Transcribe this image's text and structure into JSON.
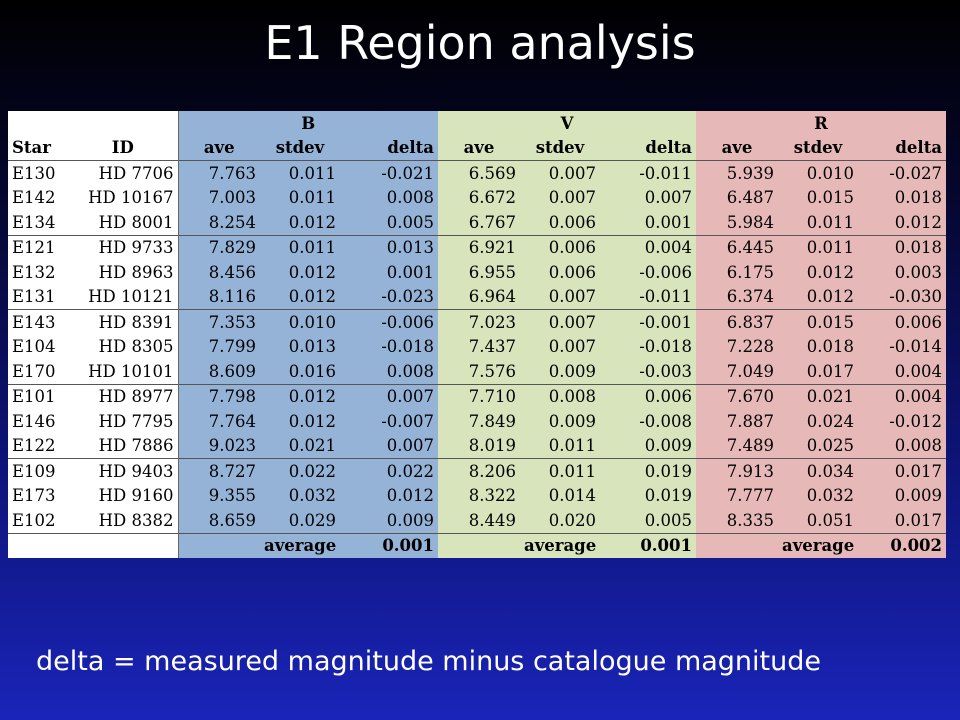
{
  "title": "E1 Region analysis",
  "group_headers": [
    "B",
    "V",
    "R"
  ],
  "col_headers": [
    "Star",
    "ID",
    "ave",
    "stdev",
    "delta",
    "ave",
    "stdev",
    "delta",
    "ave",
    "stdev",
    "delta"
  ],
  "rows": [
    {
      "star": "E130",
      "id": "HD 7706",
      "b": [
        "7.763",
        "0.011",
        "-0.021"
      ],
      "v": [
        "6.569",
        "0.007",
        "-0.011"
      ],
      "r": [
        "5.939",
        "0.010",
        "-0.027"
      ]
    },
    {
      "star": "E142",
      "id": "HD 10167",
      "b": [
        "7.003",
        "0.011",
        "0.008"
      ],
      "v": [
        "6.672",
        "0.007",
        "0.007"
      ],
      "r": [
        "6.487",
        "0.015",
        "0.018"
      ]
    },
    {
      "star": "E134",
      "id": "HD 8001",
      "b": [
        "8.254",
        "0.012",
        "0.005"
      ],
      "v": [
        "6.767",
        "0.006",
        "0.001"
      ],
      "r": [
        "5.984",
        "0.011",
        "0.012"
      ]
    },
    {
      "star": "E121",
      "id": "HD 9733",
      "b": [
        "7.829",
        "0.011",
        "0.013"
      ],
      "v": [
        "6.921",
        "0.006",
        "0.004"
      ],
      "r": [
        "6.445",
        "0.011",
        "0.018"
      ]
    },
    {
      "star": "E132",
      "id": "HD 8963",
      "b": [
        "8.456",
        "0.012",
        "0.001"
      ],
      "v": [
        "6.955",
        "0.006",
        "-0.006"
      ],
      "r": [
        "6.175",
        "0.012",
        "0.003"
      ]
    },
    {
      "star": "E131",
      "id": "HD 10121",
      "b": [
        "8.116",
        "0.012",
        "-0.023"
      ],
      "v": [
        "6.964",
        "0.007",
        "-0.011"
      ],
      "r": [
        "6.374",
        "0.012",
        "-0.030"
      ]
    },
    {
      "star": "E143",
      "id": "HD 8391",
      "b": [
        "7.353",
        "0.010",
        "-0.006"
      ],
      "v": [
        "7.023",
        "0.007",
        "-0.001"
      ],
      "r": [
        "6.837",
        "0.015",
        "0.006"
      ]
    },
    {
      "star": "E104",
      "id": "HD 8305",
      "b": [
        "7.799",
        "0.013",
        "-0.018"
      ],
      "v": [
        "7.437",
        "0.007",
        "-0.018"
      ],
      "r": [
        "7.228",
        "0.018",
        "-0.014"
      ]
    },
    {
      "star": "E170",
      "id": "HD 10101",
      "b": [
        "8.609",
        "0.016",
        "0.008"
      ],
      "v": [
        "7.576",
        "0.009",
        "-0.003"
      ],
      "r": [
        "7.049",
        "0.017",
        "0.004"
      ]
    },
    {
      "star": "E101",
      "id": "HD 8977",
      "b": [
        "7.798",
        "0.012",
        "0.007"
      ],
      "v": [
        "7.710",
        "0.008",
        "0.006"
      ],
      "r": [
        "7.670",
        "0.021",
        "0.004"
      ]
    },
    {
      "star": "E146",
      "id": "HD 7795",
      "b": [
        "7.764",
        "0.012",
        "-0.007"
      ],
      "v": [
        "7.849",
        "0.009",
        "-0.008"
      ],
      "r": [
        "7.887",
        "0.024",
        "-0.012"
      ]
    },
    {
      "star": "E122",
      "id": "HD 7886",
      "b": [
        "9.023",
        "0.021",
        "0.007"
      ],
      "v": [
        "8.019",
        "0.011",
        "0.009"
      ],
      "r": [
        "7.489",
        "0.025",
        "0.008"
      ]
    },
    {
      "star": "E109",
      "id": "HD 9403",
      "b": [
        "8.727",
        "0.022",
        "0.022"
      ],
      "v": [
        "8.206",
        "0.011",
        "0.019"
      ],
      "r": [
        "7.913",
        "0.034",
        "0.017"
      ]
    },
    {
      "star": "E173",
      "id": "HD 9160",
      "b": [
        "9.355",
        "0.032",
        "0.012"
      ],
      "v": [
        "8.322",
        "0.014",
        "0.019"
      ],
      "r": [
        "7.777",
        "0.032",
        "0.009"
      ]
    },
    {
      "star": "E102",
      "id": "HD 8382",
      "b": [
        "8.659",
        "0.029",
        "0.009"
      ],
      "v": [
        "8.449",
        "0.020",
        "0.005"
      ],
      "r": [
        "8.335",
        "0.051",
        "0.017"
      ]
    }
  ],
  "group_starts": [
    0,
    3,
    6,
    9,
    12
  ],
  "averages": {
    "label": "average",
    "b": "0.001",
    "v": "0.001",
    "r": "0.002"
  },
  "footnote": "delta = measured magnitude minus catalogue magnitude",
  "colors": {
    "b_band": "#95b3d7",
    "v_band": "#d7e4bc",
    "r_band": "#e6b9b8",
    "white": "#ffffff"
  }
}
